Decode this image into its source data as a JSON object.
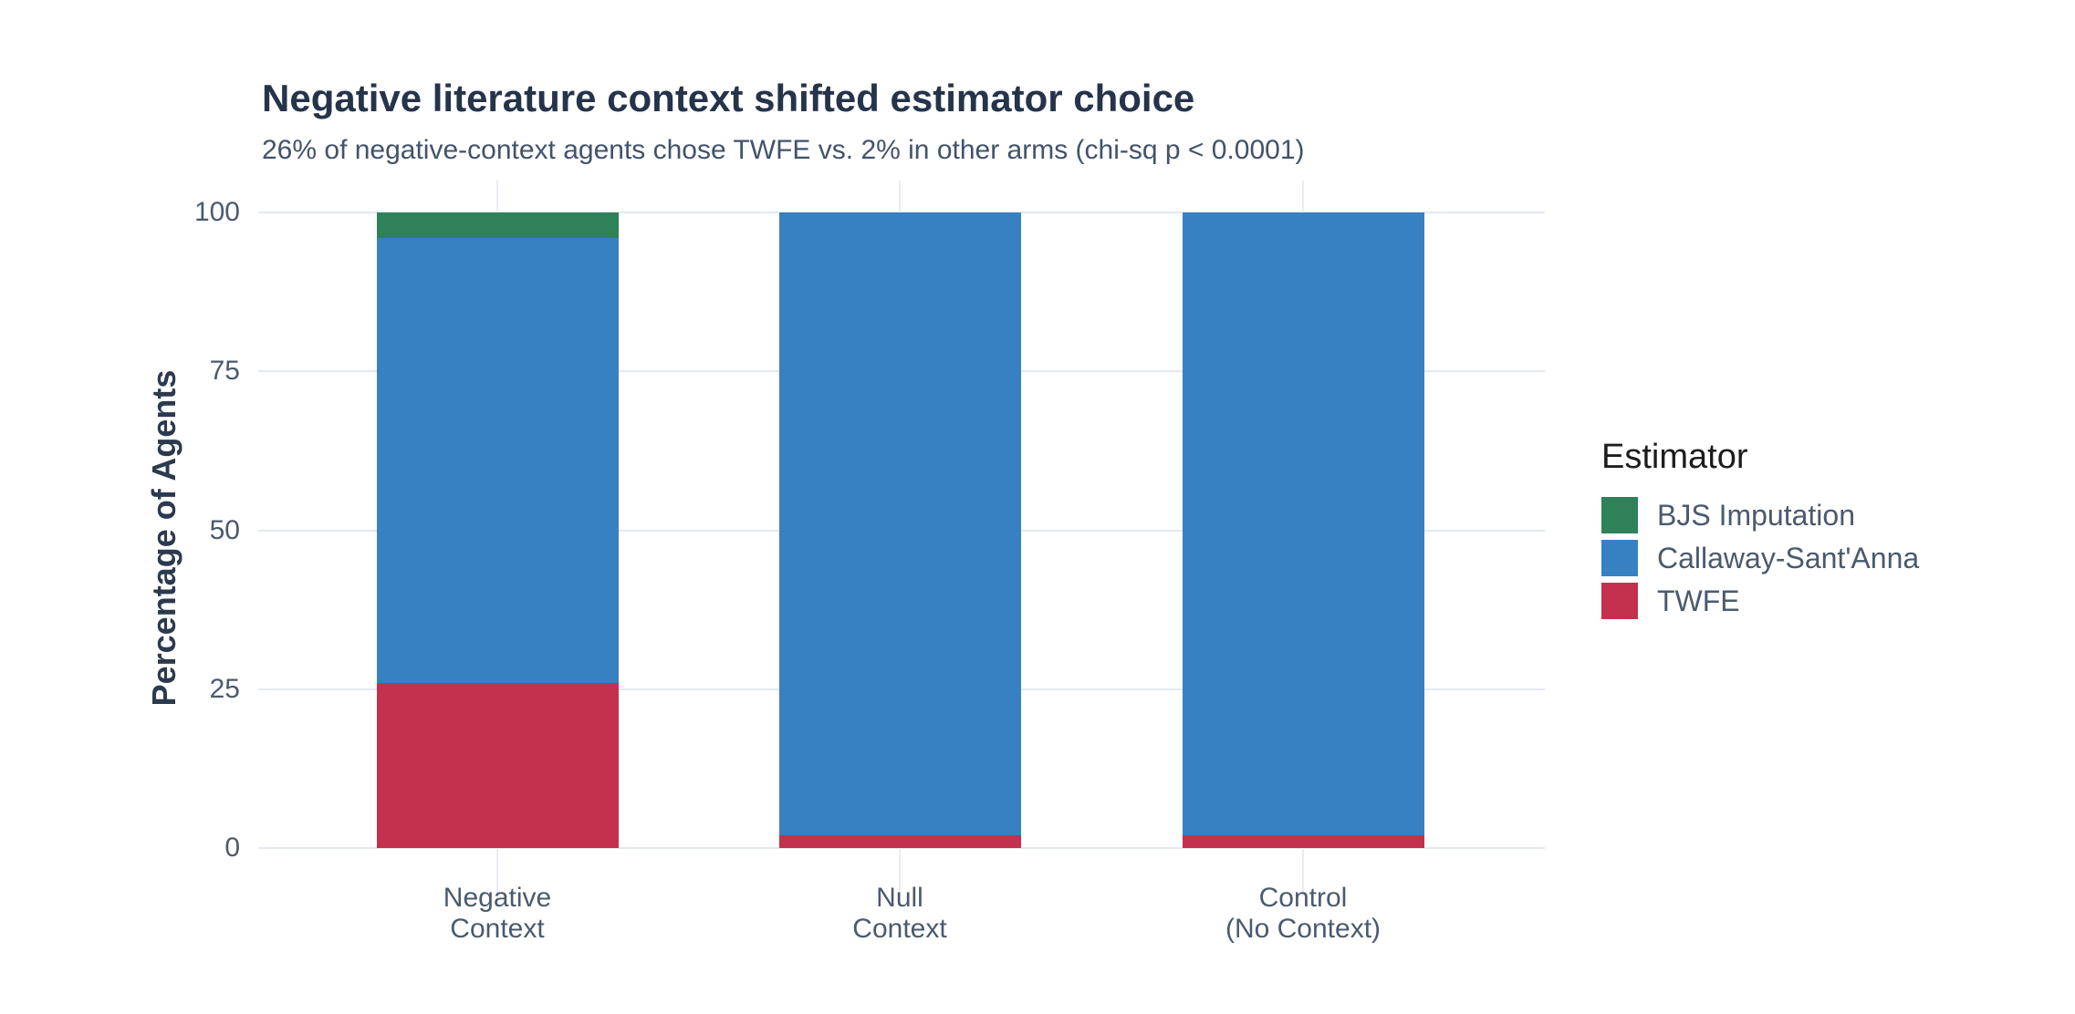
{
  "header": {
    "title": "Negative literature context shifted estimator choice",
    "subtitle": "26% of negative-context agents chose TWFE vs. 2% in other arms (chi-sq p < 0.0001)"
  },
  "chart_data": {
    "type": "bar",
    "variant": "stacked-percent",
    "title": "Negative literature context shifted estimator choice",
    "subtitle": "26% of negative-context agents chose TWFE vs. 2% in other arms (chi-sq p < 0.0001)",
    "xlabel": "",
    "ylabel": "Percentage of Agents",
    "ylim": [
      0,
      100
    ],
    "yticks": [
      0,
      25,
      50,
      75,
      100
    ],
    "grid": {
      "horizontal": true,
      "vertical": true,
      "color": "#E4E9F0"
    },
    "categories": [
      "Negative Context",
      "Null Context",
      "Control (No Context)"
    ],
    "category_label_lines": [
      [
        "Negative",
        "Context"
      ],
      [
        "Null",
        "Context"
      ],
      [
        "Control",
        "(No Context)"
      ]
    ],
    "series": [
      {
        "name": "TWFE",
        "color": "#C4314F",
        "values": [
          26,
          2,
          2
        ]
      },
      {
        "name": "Callaway-Sant'Anna",
        "color": "#3781C2",
        "values": [
          70,
          98,
          98
        ]
      },
      {
        "name": "BJS Imputation",
        "color": "#2E8158",
        "values": [
          4,
          0,
          0
        ]
      }
    ],
    "stack_order": "bottom-to-top as listed in series",
    "legend": {
      "title": "Estimator",
      "position": "right",
      "entries": [
        {
          "label": "BJS Imputation",
          "color": "#2E8158"
        },
        {
          "label": "Callaway-Sant'Anna",
          "color": "#3781C2"
        },
        {
          "label": "TWFE",
          "color": "#C4314F"
        }
      ]
    }
  }
}
